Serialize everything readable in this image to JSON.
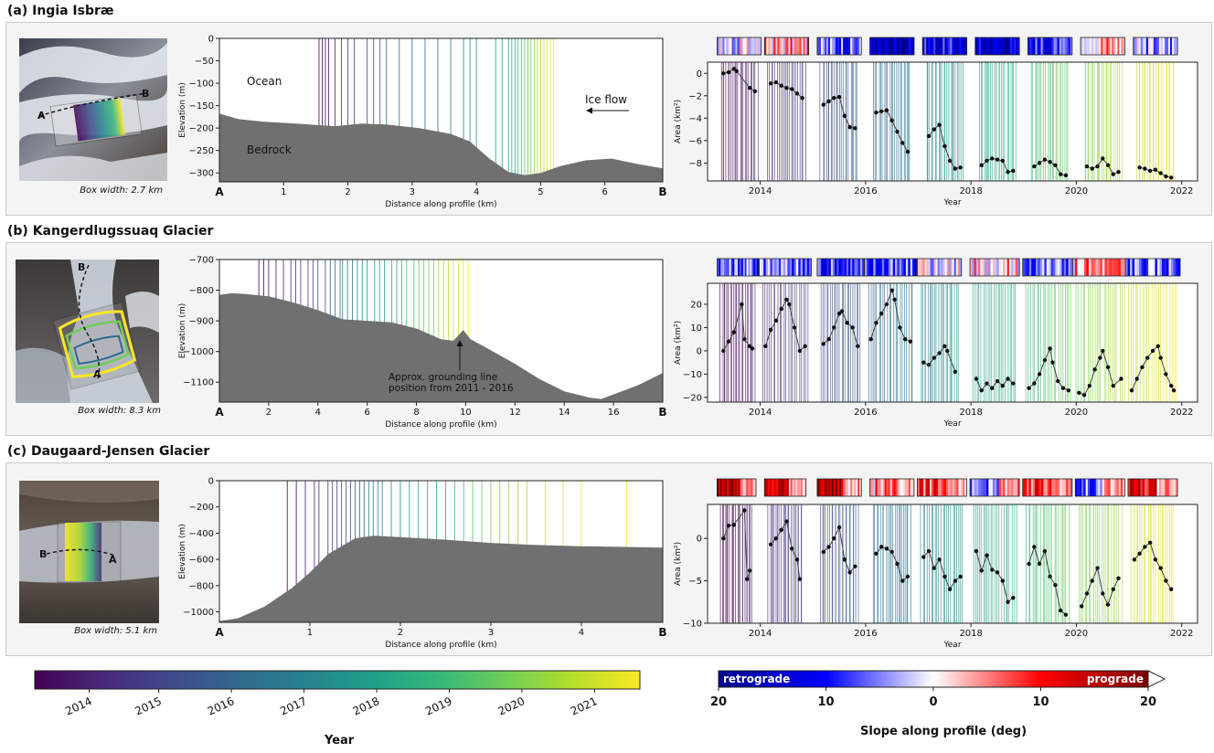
{
  "panels": [
    {
      "title": "(a) Ingia Isbræ",
      "box_width": "Box width: 2.7 km",
      "thumb_labels": [
        "A",
        "B"
      ],
      "profile": {
        "y_ticks": [
          "0",
          "−50",
          "−100",
          "−150",
          "−200",
          "−250",
          "−300"
        ],
        "x_ticks": [
          "1",
          "2",
          "3",
          "4",
          "5",
          "6"
        ],
        "end_labels": [
          "A",
          "B"
        ],
        "annotations": [
          "Ocean",
          "Bedrock",
          "Ice flow"
        ]
      },
      "area_y_ticks": [
        "0",
        "−2",
        "−4",
        "−6",
        "−8"
      ]
    },
    {
      "title": "(b) Kangerdlugssuaq Glacier",
      "box_width": "Box width: 8.3 km",
      "thumb_labels": [
        "B",
        "A"
      ],
      "profile": {
        "y_ticks": [
          "−700",
          "−800",
          "−900",
          "−1000",
          "−1100"
        ],
        "x_ticks": [
          "2",
          "4",
          "6",
          "8",
          "10",
          "12",
          "14",
          "16"
        ],
        "end_labels": [
          "A",
          "B"
        ],
        "annotations": [
          "Approx. grounding line",
          "position from 2011 - 2016"
        ]
      },
      "area_y_ticks": [
        "20",
        "10",
        "0",
        "−10",
        "−20"
      ]
    },
    {
      "title": "(c) Daugaard-Jensen Glacier",
      "box_width": "Box width: 5.1 km",
      "thumb_labels": [
        "B",
        "A"
      ],
      "profile": {
        "y_ticks": [
          "0",
          "−200",
          "−400",
          "−600",
          "−800",
          "−1000"
        ],
        "x_ticks": [
          "1",
          "2",
          "3",
          "4"
        ],
        "end_labels": [
          "A",
          "B"
        ],
        "annotations": []
      },
      "area_y_ticks": [
        "0",
        "−5",
        "−10"
      ]
    }
  ],
  "axis_labels": {
    "elevation": "Elevation (m)",
    "distance": "Distance along profile (km)",
    "area": "Area (km²)",
    "year": "Year"
  },
  "year_ticks": [
    "2014",
    "2016",
    "2018",
    "2020",
    "2022"
  ],
  "colorbar_year": {
    "ticks": [
      "2014",
      "2015",
      "2016",
      "2017",
      "2018",
      "2019",
      "2020",
      "2021"
    ],
    "label": "Year"
  },
  "colorbar_slope": {
    "left_text": "retrograde",
    "right_text": "prograde",
    "ticks": [
      "20",
      "10",
      "0",
      "10",
      "20"
    ],
    "label": "Slope along profile (deg)"
  },
  "colors": {
    "bedrock": "#707070",
    "panel_bg": "#f4f4f4",
    "viridis": [
      "#440154",
      "#482878",
      "#3e4989",
      "#31688e",
      "#26828e",
      "#1f9e89",
      "#35b779",
      "#6ece58",
      "#b5de2b",
      "#fde725"
    ],
    "slope_map": [
      "#7a0000",
      "#ff0000",
      "#ffffff",
      "#0000ff",
      "#00008b"
    ]
  },
  "chart_data": [
    {
      "type": "area",
      "title": "(a) Ingia Isbræ",
      "xlabel": "Distance along profile (km)",
      "ylabel": "Elevation (m)",
      "xlim": [
        0,
        6.9
      ],
      "ylim": [
        -320,
        0
      ],
      "x": [
        0,
        0.3,
        0.7,
        1.2,
        1.8,
        2.2,
        2.6,
        3.1,
        3.6,
        3.9,
        4.2,
        4.5,
        4.75,
        5.0,
        5.3,
        5.7,
        6.1,
        6.5,
        6.9
      ],
      "bed": [
        -168,
        -180,
        -186,
        -190,
        -196,
        -190,
        -192,
        -200,
        -213,
        -230,
        -268,
        -298,
        -305,
        -300,
        -285,
        -272,
        -268,
        -280,
        -290
      ],
      "front_positions_km": [
        1.55,
        1.6,
        1.65,
        1.7,
        1.8,
        1.9,
        2.0,
        2.1,
        2.3,
        2.4,
        2.5,
        2.6,
        2.8,
        3.0,
        3.2,
        3.4,
        3.6,
        3.8,
        3.9,
        4.0,
        4.3,
        4.4,
        4.5,
        4.55,
        4.6,
        4.65,
        4.7,
        4.75,
        4.8,
        4.85,
        4.9,
        4.95,
        5.0,
        5.05,
        5.1,
        5.15,
        5.2
      ]
    },
    {
      "type": "area",
      "title": "(b) Kangerdlugssuaq Glacier",
      "xlabel": "Distance along profile (km)",
      "ylabel": "Elevation (m)",
      "xlim": [
        0,
        18
      ],
      "ylim": [
        -1165,
        -700
      ],
      "x": [
        0,
        0.5,
        1,
        2,
        3,
        4,
        5,
        6,
        7,
        8,
        9,
        9.5,
        9.9,
        10.2,
        11,
        12,
        13,
        14,
        15,
        15.5,
        16,
        17,
        18
      ],
      "bed": [
        -815,
        -810,
        -812,
        -820,
        -840,
        -865,
        -895,
        -900,
        -905,
        -925,
        -960,
        -965,
        -930,
        -960,
        -995,
        -1040,
        -1090,
        -1130,
        -1150,
        -1155,
        -1140,
        -1110,
        -1070
      ],
      "front_positions_km": [
        1.6,
        1.8,
        2.0,
        2.3,
        2.6,
        2.9,
        3.1,
        3.3,
        3.6,
        3.8,
        4.0,
        4.3,
        4.5,
        4.7,
        4.9,
        5.0,
        5.2,
        5.4,
        5.6,
        5.8,
        6.0,
        6.3,
        6.5,
        6.7,
        7.0,
        7.2,
        7.4,
        7.6,
        7.9,
        8.1,
        8.3,
        8.5,
        8.7,
        8.9,
        9.1,
        9.3,
        9.5,
        9.7,
        9.9,
        10.1
      ]
    },
    {
      "type": "area",
      "title": "(c) Daugaard-Jensen Glacier",
      "xlabel": "Distance along profile (km)",
      "ylabel": "Elevation (m)",
      "xlim": [
        0,
        4.9
      ],
      "ylim": [
        -1080,
        0
      ],
      "x": [
        0,
        0.2,
        0.5,
        0.8,
        1.0,
        1.2,
        1.5,
        1.7,
        2.0,
        2.5,
        3.0,
        3.5,
        4.0,
        4.5,
        4.9
      ],
      "bed": [
        -1070,
        -1050,
        -960,
        -820,
        -700,
        -560,
        -440,
        -420,
        -430,
        -450,
        -475,
        -490,
        -500,
        -505,
        -510
      ],
      "front_positions_km": [
        0.75,
        0.85,
        0.95,
        1.05,
        1.1,
        1.2,
        1.25,
        1.3,
        1.35,
        1.4,
        1.45,
        1.5,
        1.55,
        1.6,
        1.65,
        1.7,
        1.75,
        1.8,
        1.9,
        2.0,
        2.1,
        2.2,
        2.3,
        2.4,
        2.5,
        2.6,
        2.7,
        2.8,
        2.9,
        3.0,
        3.1,
        3.2,
        3.3,
        3.4,
        3.6,
        3.8,
        4.0,
        4.5
      ]
    },
    {
      "type": "scatter",
      "title": "(a) Ingia Isbræ area change",
      "xlabel": "Year",
      "ylabel": "Area (km²)",
      "xlim": [
        2013.0,
        2022.3
      ],
      "ylim": [
        -9.6,
        1.0
      ],
      "segments": [
        {
          "x": [
            2013.3,
            2013.4,
            2013.5,
            2013.55,
            2013.8,
            2013.9
          ],
          "y": [
            0,
            0.1,
            0.4,
            0.2,
            -1.3,
            -1.6
          ]
        },
        {
          "x": [
            2014.2,
            2014.3,
            2014.4,
            2014.5,
            2014.6,
            2014.7,
            2014.8
          ],
          "y": [
            -0.9,
            -0.8,
            -1.1,
            -1.3,
            -1.4,
            -1.8,
            -2.2
          ]
        },
        {
          "x": [
            2015.2,
            2015.3,
            2015.4,
            2015.5,
            2015.6,
            2015.7,
            2015.8
          ],
          "y": [
            -2.8,
            -2.5,
            -2.2,
            -2.1,
            -3.8,
            -4.8,
            -4.9
          ]
        },
        {
          "x": [
            2016.2,
            2016.3,
            2016.4,
            2016.5,
            2016.6,
            2016.7,
            2016.8
          ],
          "y": [
            -3.5,
            -3.4,
            -3.3,
            -4.2,
            -5.2,
            -6.2,
            -7.0
          ]
        },
        {
          "x": [
            2017.2,
            2017.3,
            2017.4,
            2017.5,
            2017.6,
            2017.7,
            2017.8
          ],
          "y": [
            -5.6,
            -5.0,
            -4.6,
            -6.5,
            -7.8,
            -8.5,
            -8.4
          ]
        },
        {
          "x": [
            2018.2,
            2018.3,
            2018.4,
            2018.5,
            2018.6,
            2018.7,
            2018.8
          ],
          "y": [
            -8.2,
            -7.8,
            -7.6,
            -7.7,
            -7.8,
            -8.8,
            -8.7
          ]
        },
        {
          "x": [
            2019.2,
            2019.3,
            2019.4,
            2019.5,
            2019.6,
            2019.7,
            2019.8
          ],
          "y": [
            -8.3,
            -8.0,
            -7.7,
            -7.9,
            -8.2,
            -9.0,
            -9.1
          ]
        },
        {
          "x": [
            2020.2,
            2020.3,
            2020.4,
            2020.5,
            2020.6,
            2020.7,
            2020.8
          ],
          "y": [
            -8.3,
            -8.5,
            -8.3,
            -7.6,
            -8.2,
            -9.0,
            -8.8
          ]
        },
        {
          "x": [
            2021.2,
            2021.3,
            2021.4,
            2021.5,
            2021.6,
            2021.7,
            2021.8
          ],
          "y": [
            -8.4,
            -8.5,
            -8.7,
            -8.6,
            -8.9,
            -9.2,
            -9.3
          ]
        }
      ]
    },
    {
      "type": "scatter",
      "title": "(b) Kangerdlugssuaq Glacier area change",
      "xlabel": "Year",
      "ylabel": "Area (km²)",
      "xlim": [
        2013.0,
        2022.3
      ],
      "ylim": [
        -22,
        29
      ],
      "segments": [
        {
          "x": [
            2013.3,
            2013.4,
            2013.5,
            2013.65,
            2013.7,
            2013.8,
            2013.85
          ],
          "y": [
            0,
            4,
            8,
            20,
            5,
            2,
            1
          ]
        },
        {
          "x": [
            2014.1,
            2014.2,
            2014.3,
            2014.4,
            2014.5,
            2014.55,
            2014.65,
            2014.75,
            2014.85
          ],
          "y": [
            2,
            9,
            13,
            18,
            22,
            20,
            10,
            0,
            2
          ]
        },
        {
          "x": [
            2015.2,
            2015.3,
            2015.4,
            2015.5,
            2015.55,
            2015.65,
            2015.75,
            2015.85
          ],
          "y": [
            3,
            5,
            10,
            16,
            17,
            12,
            10,
            2
          ]
        },
        {
          "x": [
            2016.1,
            2016.2,
            2016.3,
            2016.4,
            2016.5,
            2016.55,
            2016.65,
            2016.75,
            2016.85
          ],
          "y": [
            5,
            12,
            16,
            20,
            26,
            22,
            10,
            5,
            4
          ]
        },
        {
          "x": [
            2017.1,
            2017.2,
            2017.3,
            2017.4,
            2017.5,
            2017.55,
            2017.7
          ],
          "y": [
            -5,
            -6,
            -3,
            -1,
            2,
            0,
            -9
          ]
        },
        {
          "x": [
            2018.1,
            2018.2,
            2018.3,
            2018.4,
            2018.5,
            2018.6,
            2018.7,
            2018.8
          ],
          "y": [
            -12,
            -17,
            -14,
            -16,
            -13,
            -15,
            -12,
            -14
          ]
        },
        {
          "x": [
            2019.1,
            2019.2,
            2019.3,
            2019.4,
            2019.5,
            2019.55,
            2019.65,
            2019.75,
            2019.85
          ],
          "y": [
            -16,
            -14,
            -10,
            -4,
            1,
            -5,
            -13,
            -16,
            -17
          ]
        },
        {
          "x": [
            2020.05,
            2020.15,
            2020.25,
            2020.35,
            2020.45,
            2020.5,
            2020.6,
            2020.7,
            2020.85
          ],
          "y": [
            -18,
            -19,
            -15,
            -8,
            -3,
            0,
            -7,
            -15,
            -12
          ]
        },
        {
          "x": [
            2021.05,
            2021.15,
            2021.25,
            2021.35,
            2021.45,
            2021.55,
            2021.6,
            2021.7,
            2021.8,
            2021.85
          ],
          "y": [
            -17,
            -12,
            -7,
            -3,
            0,
            2,
            -3,
            -10,
            -15,
            -17
          ]
        }
      ]
    },
    {
      "type": "scatter",
      "title": "(c) Daugaard-Jensen Glacier area change",
      "xlabel": "Year",
      "ylabel": "Area (km²)",
      "xlim": [
        2013.0,
        2022.3
      ],
      "ylim": [
        -10,
        4
      ],
      "segments": [
        {
          "x": [
            2013.3,
            2013.4,
            2013.5,
            2013.7,
            2013.75,
            2013.8
          ],
          "y": [
            0,
            1.5,
            1.6,
            3.3,
            -4.8,
            -3.8
          ]
        },
        {
          "x": [
            2014.2,
            2014.3,
            2014.4,
            2014.5,
            2014.6,
            2014.7,
            2014.75
          ],
          "y": [
            -0.7,
            0,
            1.0,
            2.0,
            -1.2,
            -2.5,
            -4.8
          ]
        },
        {
          "x": [
            2015.2,
            2015.3,
            2015.4,
            2015.5,
            2015.6,
            2015.7,
            2015.8
          ],
          "y": [
            -1.6,
            -1.0,
            0,
            1.3,
            -2.5,
            -4.0,
            -3.3
          ]
        },
        {
          "x": [
            2016.2,
            2016.3,
            2016.4,
            2016.5,
            2016.6,
            2016.7,
            2016.8
          ],
          "y": [
            -1.8,
            -1.0,
            -1.2,
            -1.6,
            -3.0,
            -5.0,
            -4.5
          ]
        },
        {
          "x": [
            2017.1,
            2017.2,
            2017.3,
            2017.4,
            2017.5,
            2017.6,
            2017.7,
            2017.8
          ],
          "y": [
            -2.2,
            -1.5,
            -3.5,
            -2.5,
            -4.5,
            -6.0,
            -5.0,
            -4.5
          ]
        },
        {
          "x": [
            2018.1,
            2018.2,
            2018.3,
            2018.4,
            2018.5,
            2018.6,
            2018.7,
            2018.8
          ],
          "y": [
            -1.5,
            -3.8,
            -2.0,
            -3.7,
            -4.0,
            -5.0,
            -7.5,
            -7.0
          ]
        },
        {
          "x": [
            2019.1,
            2019.2,
            2019.3,
            2019.4,
            2019.5,
            2019.6,
            2019.7,
            2019.8
          ],
          "y": [
            -3.0,
            -1.0,
            -3.0,
            -1.5,
            -4.5,
            -5.5,
            -8.5,
            -9.0
          ]
        },
        {
          "x": [
            2020.1,
            2020.2,
            2020.3,
            2020.4,
            2020.5,
            2020.6,
            2020.7,
            2020.8
          ],
          "y": [
            -8.0,
            -6.5,
            -5.0,
            -3.5,
            -6.5,
            -7.8,
            -6.0,
            -4.7
          ]
        },
        {
          "x": [
            2021.1,
            2021.2,
            2021.3,
            2021.4,
            2021.5,
            2021.6,
            2021.7,
            2021.8
          ],
          "y": [
            -2.5,
            -1.8,
            -1.0,
            -0.5,
            -2.5,
            -3.5,
            -5.0,
            -6.0
          ]
        }
      ]
    }
  ]
}
